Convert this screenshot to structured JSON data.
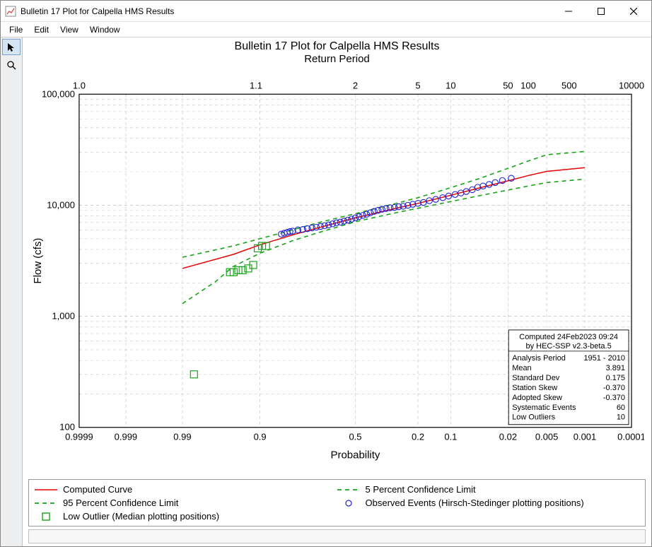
{
  "window": {
    "title": "Bulletin 17 Plot for Calpella HMS Results"
  },
  "menubar": [
    "File",
    "Edit",
    "View",
    "Window"
  ],
  "chart": {
    "title": "Bulletin 17 Plot for Calpella HMS Results",
    "top_axis_title": "Return Period",
    "bottom_axis_title": "Probability",
    "y_axis_title": "Flow (cfs)",
    "y_scale": "log",
    "y_range": [
      100,
      100000
    ],
    "y_ticks": [
      100,
      1000,
      10000,
      100000
    ],
    "y_tick_labels": [
      "100",
      "1,000",
      "10,000",
      "100,000"
    ],
    "x_probability_ticks": [
      0.9999,
      0.999,
      0.99,
      0.9,
      0.5,
      0.2,
      0.1,
      0.02,
      0.005,
      0.001,
      0.0001
    ],
    "x_probability_labels": [
      "0.9999",
      "0.999",
      "0.99",
      "0.9",
      "0.5",
      "0.2",
      "0.1",
      "0.02",
      "0.005",
      "0.001",
      "0.0001"
    ],
    "x_return_ticks": [
      1.0,
      1.1,
      2,
      5,
      10,
      50,
      100,
      500,
      10000
    ],
    "x_return_labels": [
      "1.0",
      "1.1",
      "2",
      "5",
      "10",
      "50",
      "100",
      "500",
      "10000"
    ],
    "grid_color": "#c9c9c9",
    "frame_color": "#000000",
    "background": "#ffffff",
    "computed_curve": {
      "color": "#e60000",
      "width": 1.5,
      "points": [
        [
          0.99,
          2700
        ],
        [
          0.95,
          3600
        ],
        [
          0.9,
          4400
        ],
        [
          0.8,
          5400
        ],
        [
          0.7,
          6200
        ],
        [
          0.5,
          7700
        ],
        [
          0.3,
          9300
        ],
        [
          0.2,
          10400
        ],
        [
          0.1,
          12300
        ],
        [
          0.05,
          14200
        ],
        [
          0.02,
          16600
        ],
        [
          0.01,
          18500
        ],
        [
          0.005,
          20200
        ],
        [
          0.001,
          21800
        ]
      ]
    },
    "conf_upper": {
      "color": "#16a416",
      "dash": "6,5",
      "width": 1.6,
      "points": [
        [
          0.99,
          3400
        ],
        [
          0.95,
          4300
        ],
        [
          0.9,
          5000
        ],
        [
          0.8,
          6000
        ],
        [
          0.7,
          6900
        ],
        [
          0.5,
          8400
        ],
        [
          0.3,
          10300
        ],
        [
          0.2,
          11700
        ],
        [
          0.1,
          14400
        ],
        [
          0.05,
          17200
        ],
        [
          0.02,
          21500
        ],
        [
          0.01,
          25000
        ],
        [
          0.005,
          28500
        ],
        [
          0.001,
          30500
        ]
      ]
    },
    "conf_lower": {
      "color": "#16a416",
      "dash": "6,5",
      "width": 1.6,
      "points": [
        [
          0.99,
          1300
        ],
        [
          0.97,
          2050
        ],
        [
          0.95,
          2800
        ],
        [
          0.9,
          3700
        ],
        [
          0.8,
          4800
        ],
        [
          0.7,
          5600
        ],
        [
          0.5,
          7100
        ],
        [
          0.3,
          8500
        ],
        [
          0.2,
          9400
        ],
        [
          0.1,
          10800
        ],
        [
          0.05,
          12100
        ],
        [
          0.02,
          13700
        ],
        [
          0.01,
          14900
        ],
        [
          0.005,
          16000
        ],
        [
          0.001,
          17200
        ]
      ]
    },
    "observed": {
      "color": "#2020d0",
      "marker": "circle",
      "size": 4.2,
      "points": [
        [
          0.84,
          5500
        ],
        [
          0.83,
          5600
        ],
        [
          0.82,
          5700
        ],
        [
          0.81,
          5800
        ],
        [
          0.8,
          5850
        ],
        [
          0.78,
          6000
        ],
        [
          0.76,
          6050
        ],
        [
          0.74,
          6150
        ],
        [
          0.72,
          6250
        ],
        [
          0.7,
          6350
        ],
        [
          0.68,
          6450
        ],
        [
          0.66,
          6550
        ],
        [
          0.64,
          6650
        ],
        [
          0.62,
          6800
        ],
        [
          0.6,
          6950
        ],
        [
          0.58,
          7050
        ],
        [
          0.56,
          7200
        ],
        [
          0.54,
          7350
        ],
        [
          0.52,
          7500
        ],
        [
          0.5,
          7700
        ],
        [
          0.48,
          7900
        ],
        [
          0.46,
          8100
        ],
        [
          0.44,
          8300
        ],
        [
          0.42,
          8550
        ],
        [
          0.4,
          8800
        ],
        [
          0.38,
          9000
        ],
        [
          0.36,
          9200
        ],
        [
          0.34,
          9350
        ],
        [
          0.32,
          9500
        ],
        [
          0.3,
          9550
        ],
        [
          0.28,
          9700
        ],
        [
          0.26,
          9800
        ],
        [
          0.24,
          10000
        ],
        [
          0.22,
          10200
        ],
        [
          0.2,
          10400
        ],
        [
          0.18,
          10600
        ],
        [
          0.16,
          11000
        ],
        [
          0.14,
          11300
        ],
        [
          0.12,
          11700
        ],
        [
          0.105,
          12100
        ],
        [
          0.09,
          12500
        ],
        [
          0.078,
          12900
        ],
        [
          0.068,
          13300
        ],
        [
          0.058,
          13800
        ],
        [
          0.05,
          14500
        ],
        [
          0.043,
          14900
        ],
        [
          0.036,
          15400
        ],
        [
          0.03,
          16000
        ],
        [
          0.024,
          16700
        ],
        [
          0.018,
          17500
        ]
      ]
    },
    "low_outliers": {
      "color": "#16a416",
      "marker": "square",
      "size": 5,
      "points": [
        [
          0.985,
          300
        ],
        [
          0.954,
          2500
        ],
        [
          0.949,
          2500
        ],
        [
          0.942,
          2600
        ],
        [
          0.935,
          2600
        ],
        [
          0.925,
          2700
        ],
        [
          0.915,
          2900
        ],
        [
          0.905,
          4100
        ],
        [
          0.895,
          4300
        ],
        [
          0.885,
          4300
        ]
      ]
    }
  },
  "stats_box": {
    "header1": "Computed 24Feb2023 09:24",
    "header2": "by HEC-SSP v2.3-beta.5",
    "rows": [
      [
        "Analysis Period",
        "1951 - 2010"
      ],
      [
        "Mean",
        "3.891"
      ],
      [
        "Standard Dev",
        "0.175"
      ],
      [
        "Station Skew",
        "-0.370"
      ],
      [
        "Adopted Skew",
        "-0.370"
      ],
      [
        "Systematic Events",
        "60"
      ],
      [
        "Low Outliers",
        "10"
      ]
    ]
  },
  "legend": {
    "items": [
      {
        "swatch": "line-red",
        "label": "Computed Curve"
      },
      {
        "swatch": "line-green-dash",
        "label": "5 Percent Confidence Limit"
      },
      {
        "swatch": "line-green-dash",
        "label": "95 Percent Confidence Limit"
      },
      {
        "swatch": "marker-blue-circle",
        "label": "Observed Events (Hirsch-Stedinger plotting positions)"
      },
      {
        "swatch": "marker-green-square",
        "label": "Low Outlier (Median plotting positions)"
      }
    ]
  }
}
